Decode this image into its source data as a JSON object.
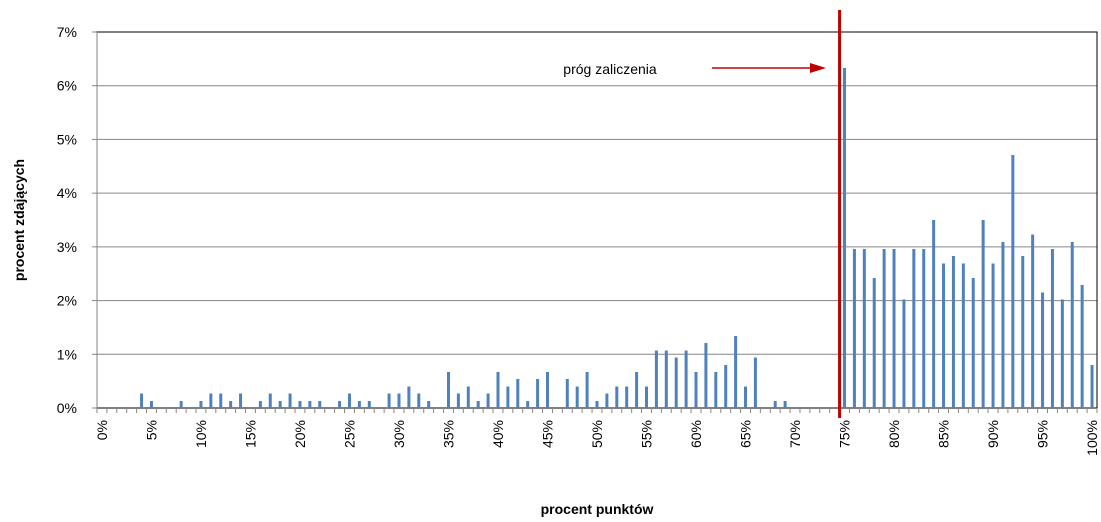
{
  "chart_data": {
    "type": "bar",
    "y_label": "procent zdających",
    "x_label": "procent punktów",
    "categories": [
      "0%",
      null,
      null,
      null,
      null,
      "5%",
      null,
      null,
      null,
      null,
      "10%",
      null,
      null,
      null,
      null,
      "15%",
      null,
      null,
      null,
      null,
      "20%",
      null,
      null,
      null,
      null,
      "25%",
      null,
      null,
      null,
      null,
      "30%",
      null,
      null,
      null,
      null,
      "35%",
      null,
      null,
      null,
      null,
      "40%",
      null,
      null,
      null,
      null,
      "45%",
      null,
      null,
      null,
      null,
      "50%",
      null,
      null,
      null,
      null,
      "55%",
      null,
      null,
      null,
      null,
      "60%",
      null,
      null,
      null,
      null,
      "65%",
      null,
      null,
      null,
      null,
      "70%",
      null,
      null,
      null,
      null,
      "75%",
      null,
      null,
      null,
      null,
      "80%",
      null,
      null,
      null,
      null,
      "85%",
      null,
      null,
      null,
      null,
      "90%",
      null,
      null,
      null,
      null,
      "95%",
      null,
      null,
      null,
      null,
      "100%"
    ],
    "values": [
      0,
      0,
      0,
      0,
      0.27,
      0.13,
      0,
      0,
      0.13,
      0,
      0.13,
      0.27,
      0.27,
      0.13,
      0.27,
      0,
      0.13,
      0.27,
      0.13,
      0.27,
      0.13,
      0.13,
      0.13,
      0,
      0.13,
      0.27,
      0.13,
      0.13,
      0,
      0.27,
      0.27,
      0.4,
      0.27,
      0.13,
      0,
      0.67,
      0.27,
      0.4,
      0.13,
      0.27,
      0.67,
      0.4,
      0.54,
      0.13,
      0.54,
      0.67,
      0,
      0.54,
      0.4,
      0.67,
      0.13,
      0.27,
      0.4,
      0.4,
      0.67,
      0.4,
      1.07,
      1.07,
      0.94,
      1.07,
      0.67,
      1.21,
      0.67,
      0.8,
      1.34,
      0.4,
      0.94,
      0,
      0.13,
      0.13,
      0,
      0,
      0,
      0,
      0,
      6.33,
      2.96,
      2.96,
      2.42,
      2.96,
      2.96,
      2.02,
      2.96,
      2.96,
      3.5,
      2.69,
      2.83,
      2.69,
      2.42,
      3.5,
      2.69,
      3.09,
      4.71,
      2.83,
      3.23,
      2.15,
      2.96,
      2.02,
      3.09,
      2.29,
      0.8
    ],
    "color": "#4f81bd",
    "ylim": [
      0,
      7
    ],
    "yticks": [
      {
        "value": 0,
        "label": "0%"
      },
      {
        "value": 1,
        "label": "1%"
      },
      {
        "value": 2,
        "label": "2%"
      },
      {
        "value": 3,
        "label": "3%"
      },
      {
        "value": 4,
        "label": "4%"
      },
      {
        "value": 5,
        "label": "5%"
      },
      {
        "value": 6,
        "label": "6%"
      },
      {
        "value": 7,
        "label": "7%"
      }
    ],
    "grid": true,
    "threshold": {
      "label": "próg zaliczenia",
      "value": 74.5,
      "color": "#c00000"
    }
  }
}
